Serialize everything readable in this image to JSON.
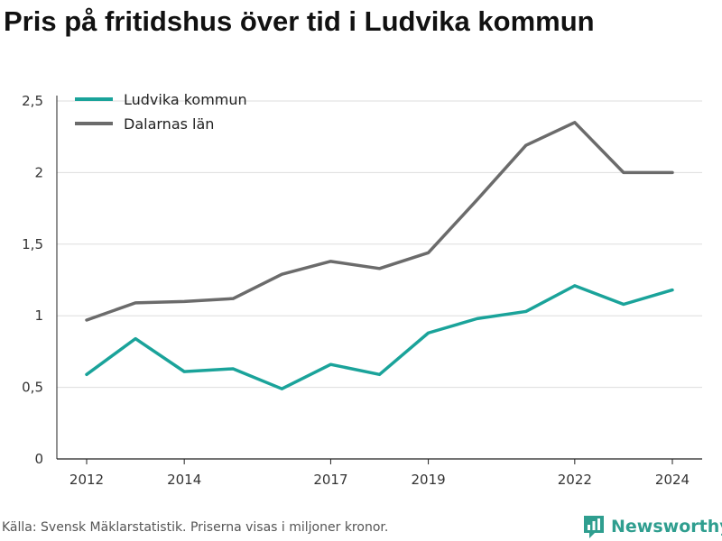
{
  "title": "Pris på fritidshus över tid i Ludvika kommun",
  "source": "Källa: Svensk Mäklarstatistik. Priserna visas i miljoner kronor.",
  "brand": {
    "name": "Newsworthy",
    "color": "#2f9e8f"
  },
  "chart_data": {
    "type": "line",
    "title": "Pris på fritidshus över tid i Ludvika kommun",
    "x": [
      2012,
      2013,
      2014,
      2015,
      2016,
      2017,
      2018,
      2019,
      2020,
      2021,
      2022,
      2023,
      2024
    ],
    "x_tick_values": [
      2012,
      2014,
      2017,
      2019,
      2022,
      2024
    ],
    "x_tick_labels": [
      "2012",
      "2014",
      "2017",
      "2019",
      "2022",
      "2024"
    ],
    "y_ticks": [
      0,
      0.5,
      1,
      1.5,
      2,
      2.5
    ],
    "y_tick_labels": [
      "0",
      "0,5",
      "1",
      "1,5",
      "2",
      "2,5"
    ],
    "ylim": [
      0,
      2.5
    ],
    "grid": true,
    "legend_position": "top-left",
    "series": [
      {
        "name": "Ludvika kommun",
        "color": "#1aa39a",
        "values": [
          0.59,
          0.84,
          0.61,
          0.63,
          0.49,
          0.66,
          0.59,
          0.88,
          0.98,
          1.03,
          1.21,
          1.08,
          1.18
        ]
      },
      {
        "name": "Dalarnas län",
        "color": "#6b6b6b",
        "values": [
          0.97,
          1.09,
          1.1,
          1.12,
          1.29,
          1.38,
          1.33,
          1.44,
          1.81,
          2.19,
          2.35,
          2.0,
          2.0
        ]
      }
    ]
  }
}
